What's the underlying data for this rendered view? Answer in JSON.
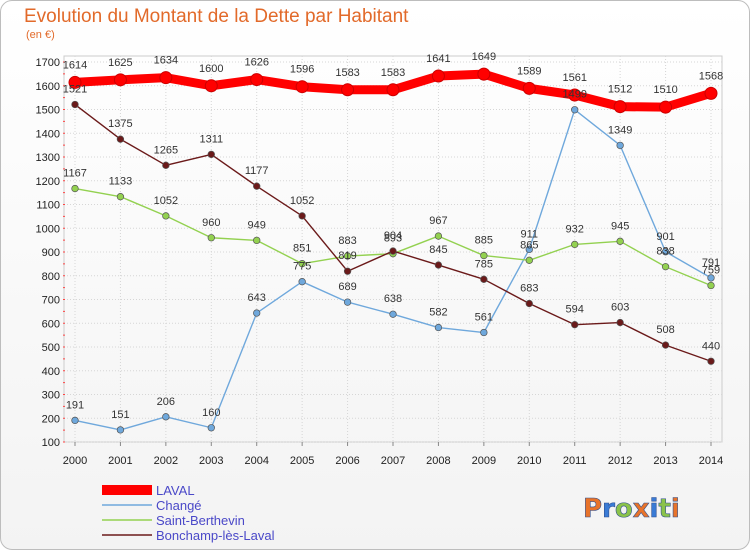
{
  "chart_data": {
    "type": "line",
    "title": "Evolution du Montant de la Dette par Habitant",
    "subtitle": "(en €)",
    "xlabel": "",
    "ylabel": "",
    "x": [
      "2000",
      "2001",
      "2002",
      "2003",
      "2004",
      "2005",
      "2006",
      "2007",
      "2008",
      "2009",
      "2010",
      "2011",
      "2012",
      "2013",
      "2014"
    ],
    "ylim": [
      100,
      1700
    ],
    "yticks": [
      100,
      200,
      300,
      400,
      500,
      600,
      700,
      800,
      900,
      1000,
      1100,
      1200,
      1300,
      1400,
      1500,
      1600,
      1700
    ],
    "grid": true,
    "legend_position": "bottom-left",
    "series": [
      {
        "name": "LAVAL",
        "color": "#ff0000",
        "values": [
          1614,
          1625,
          1634,
          1600,
          1626,
          1596,
          1583,
          1583,
          1641,
          1649,
          1589,
          1561,
          1512,
          1510,
          1568
        ]
      },
      {
        "name": "Changé",
        "color": "#6fa8dc",
        "values": [
          191,
          151,
          206,
          160,
          643,
          775,
          689,
          638,
          582,
          561,
          911,
          1499,
          1349,
          901,
          791
        ]
      },
      {
        "name": "Saint-Berthevin",
        "color": "#93d150",
        "values": [
          1167,
          1133,
          1052,
          960,
          949,
          851,
          883,
          893,
          967,
          885,
          865,
          932,
          945,
          838,
          759
        ]
      },
      {
        "name": "Bonchamp-lès-Laval",
        "color": "#6b1a1a",
        "values": [
          1521,
          1375,
          1265,
          1311,
          1177,
          1052,
          819,
          904,
          845,
          785,
          683,
          594,
          603,
          508,
          440
        ]
      }
    ],
    "data_labels": [
      [
        "1614",
        "1625",
        "1634",
        "1600",
        "1626",
        "1596",
        "1583",
        "1583",
        "1641",
        "1649",
        "1589",
        "1561",
        "1512",
        "1510",
        "1568"
      ],
      [
        "191",
        "151",
        "206",
        "160",
        "643",
        "775",
        "689",
        "638",
        "582",
        "561",
        "911",
        "1499",
        "1349",
        "901",
        "791"
      ],
      [
        "1167",
        "1133",
        "1052",
        "960",
        "949",
        "851",
        "883",
        "893",
        "967",
        "885",
        "865",
        "932",
        "945",
        "838",
        "759"
      ],
      [
        "1521",
        "1375",
        "1265",
        "1311",
        "1177",
        "1052",
        "819",
        "904",
        "845",
        "785",
        "683",
        "594",
        "603",
        "508",
        "440"
      ]
    ]
  },
  "logo": {
    "text": "Proxiti",
    "colors": [
      "#e8732a",
      "#3a7bd5",
      "#8bc34a",
      "#e8732a",
      "#3a7bd5",
      "#8bc34a",
      "#e8732a"
    ]
  }
}
